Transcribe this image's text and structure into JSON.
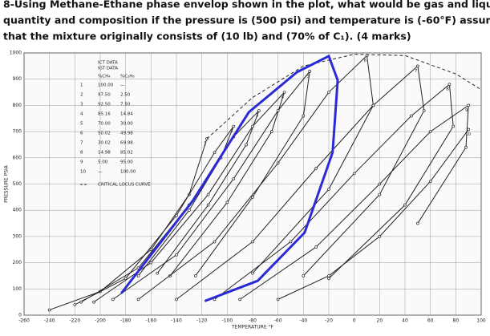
{
  "question": {
    "lines": [
      "8-Using Methane-Ethane phase envelop shown in the plot, what would be gas and liquid",
      "quantity and composition if the pressure is (500 psi) and temperature is (-60°F) assuming",
      "that the mixture originally consists of (10 lb) and (70% of C₁). (4 marks)"
    ]
  },
  "chart_data": {
    "type": "line",
    "x_label": "TEMPERATURE °F",
    "y_label": "PRESSURE PSIA",
    "xlim": [
      -260,
      100
    ],
    "ylim": [
      0,
      1000
    ],
    "xticks": [
      -260,
      -240,
      -220,
      -200,
      -180,
      -160,
      -140,
      -120,
      -100,
      -80,
      -60,
      -40,
      -20,
      0,
      20,
      40,
      60,
      80,
      100
    ],
    "yticks": [
      0,
      100,
      200,
      300,
      400,
      500,
      600,
      700,
      800,
      900,
      1000
    ],
    "grid": true,
    "legend": {
      "sources": [
        "ICT DATA",
        "IGT DATA"
      ],
      "columns": [
        "%CH₄",
        "%C₂H₆"
      ],
      "rows": [
        [
          "1",
          "100.00",
          "—"
        ],
        [
          "2",
          "97.50",
          "2.50"
        ],
        [
          "3",
          "92.50",
          "7.50"
        ],
        [
          "4",
          "85.16",
          "14.84"
        ],
        [
          "5",
          "70.00",
          "30.00"
        ],
        [
          "6",
          "50.02",
          "49.98"
        ],
        [
          "7",
          "30.02",
          "69.98"
        ],
        [
          "8",
          "14.98",
          "85.02"
        ],
        [
          "9",
          "5.00",
          "95.00"
        ],
        [
          "10",
          "—",
          "100.00"
        ]
      ],
      "locus_label": "CRITICAL LOCUS CURVE"
    },
    "series": [
      {
        "name": "1",
        "color": "#222",
        "x": [
          -240,
          -200,
          -160,
          -130,
          -116
        ],
        "values": [
          20,
          90,
          250,
          460,
          673
        ]
      },
      {
        "name": "2",
        "color": "#222",
        "x": [
          -220,
          -180,
          -140,
          -110,
          -95,
          -105,
          -130,
          -170
        ],
        "values": [
          40,
          140,
          380,
          620,
          720,
          600,
          400,
          150
        ]
      },
      {
        "name": "3",
        "color": "#222",
        "x": [
          -215,
          -170,
          -130,
          -95,
          -75,
          -85,
          -115,
          -155
        ],
        "values": [
          50,
          180,
          420,
          680,
          780,
          650,
          420,
          160
        ]
      },
      {
        "name": "4",
        "color": "#222",
        "x": [
          -205,
          -160,
          -115,
          -80,
          -55,
          -65,
          -100,
          -145
        ],
        "values": [
          50,
          200,
          460,
          720,
          850,
          700,
          430,
          150
        ]
      },
      {
        "name": "5",
        "color": "#222",
        "x": [
          -190,
          -140,
          -95,
          -60,
          -35,
          -40,
          -80,
          -125
        ],
        "values": [
          60,
          230,
          520,
          780,
          930,
          760,
          450,
          150
        ]
      },
      {
        "name": "6",
        "color": "#222",
        "x": [
          -170,
          -110,
          -60,
          -20,
          10,
          15,
          -20,
          -80
        ],
        "values": [
          60,
          280,
          580,
          850,
          990,
          800,
          480,
          160
        ]
      },
      {
        "name": "7",
        "color": "#222",
        "x": [
          -140,
          -80,
          -30,
          15,
          50,
          55,
          20,
          -40
        ],
        "values": [
          60,
          280,
          560,
          800,
          950,
          780,
          460,
          150
        ]
      },
      {
        "name": "8",
        "color": "#222",
        "x": [
          -110,
          -50,
          0,
          45,
          75,
          78,
          40,
          -20
        ],
        "values": [
          60,
          280,
          540,
          760,
          880,
          720,
          420,
          140
        ]
      },
      {
        "name": "9",
        "color": "#222",
        "x": [
          -90,
          -30,
          20,
          60,
          90,
          88,
          50
        ],
        "values": [
          60,
          260,
          500,
          700,
          800,
          640,
          350
        ]
      },
      {
        "name": "10",
        "color": "#222",
        "x": [
          -60,
          -20,
          20,
          60,
          90
        ],
        "values": [
          60,
          150,
          300,
          510,
          708
        ]
      }
    ],
    "critical_locus": {
      "color": "#222",
      "x": [
        -116,
        -80,
        -40,
        0,
        40,
        80,
        100
      ],
      "values": [
        673,
        830,
        950,
        995,
        990,
        920,
        860
      ]
    },
    "annotation_curve": {
      "color": "#2b2bd6",
      "x": [
        -183,
        -127,
        -83,
        -45,
        -20,
        -13,
        -17,
        -39,
        -76,
        -117
      ],
      "values": [
        86,
        437,
        774,
        927,
        988,
        896,
        621,
        315,
        131,
        55
      ]
    }
  }
}
